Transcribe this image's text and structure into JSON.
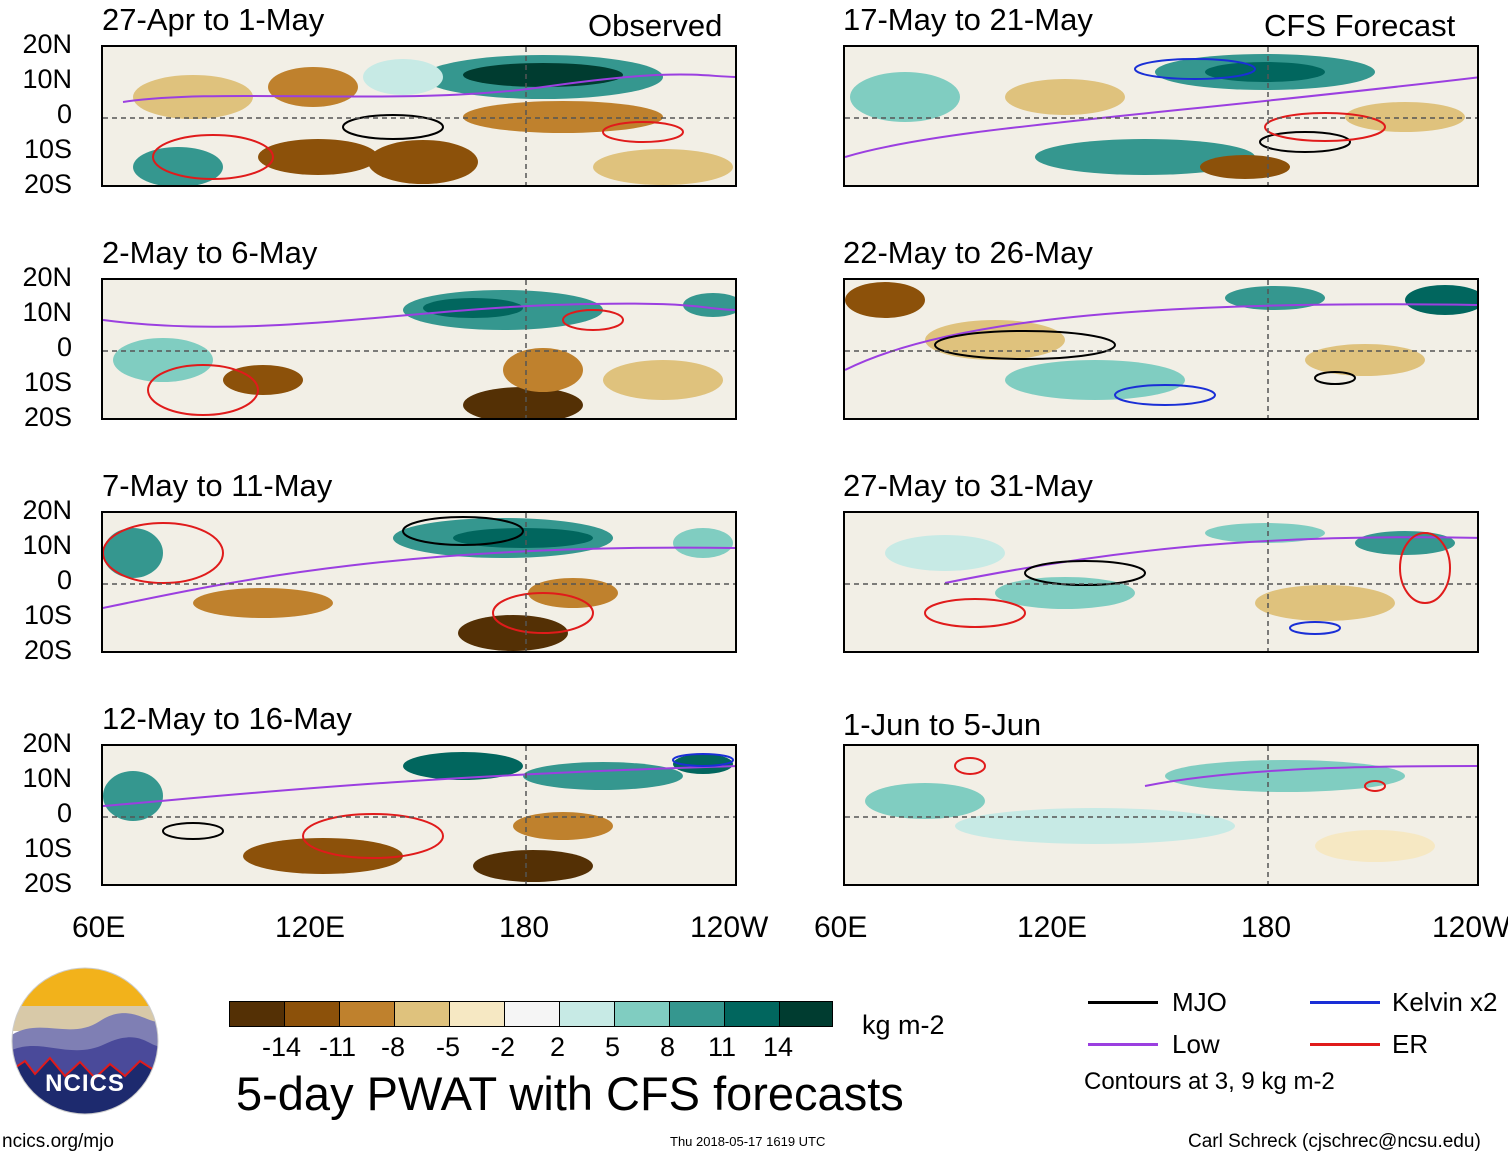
{
  "figure": {
    "main_title": "5-day PWAT with CFS forecasts",
    "units": "kg m-2",
    "contour_note": "Contours at 3, 9 kg m-2",
    "website": "ncics.org/mjo",
    "timestamp": "Thu 2018-05-17 1619 UTC",
    "author": "Carl Schreck (cjschrec@ncsu.edu)",
    "logo_text": "NCICS",
    "label_observed": "Observed",
    "label_forecast": "CFS Forecast"
  },
  "panels": {
    "observed": [
      {
        "title": "27-Apr to 1-May"
      },
      {
        "title": "2-May to 6-May"
      },
      {
        "title": "7-May to 11-May"
      },
      {
        "title": "12-May to 16-May"
      }
    ],
    "forecast": [
      {
        "title": "17-May to 21-May"
      },
      {
        "title": "22-May to 26-May"
      },
      {
        "title": "27-May to 31-May"
      },
      {
        "title": "1-Jun to 5-Jun"
      }
    ]
  },
  "axes": {
    "lat_labels": [
      "20N",
      "10N",
      "0",
      "10S",
      "20S"
    ],
    "lon_labels": [
      "60E",
      "120E",
      "180",
      "120W"
    ]
  },
  "colorbar": {
    "ticks": [
      "-14",
      "-11",
      "-8",
      "-5",
      "-2",
      "2",
      "5",
      "8",
      "11",
      "14"
    ],
    "colors": [
      "#543005",
      "#8c510a",
      "#bf812d",
      "#dfc27d",
      "#f6e8c3",
      "#f5f5f5",
      "#c7eae5",
      "#80cdc1",
      "#35978f",
      "#01665e",
      "#003c30"
    ]
  },
  "legend": {
    "mjo": {
      "label": "MJO",
      "color": "#000000"
    },
    "kelvin": {
      "label": "Kelvin x2",
      "color": "#1a2fd6"
    },
    "low": {
      "label": "Low",
      "color": "#9b3fe0"
    },
    "er": {
      "label": "ER",
      "color": "#e01b1b"
    }
  }
}
